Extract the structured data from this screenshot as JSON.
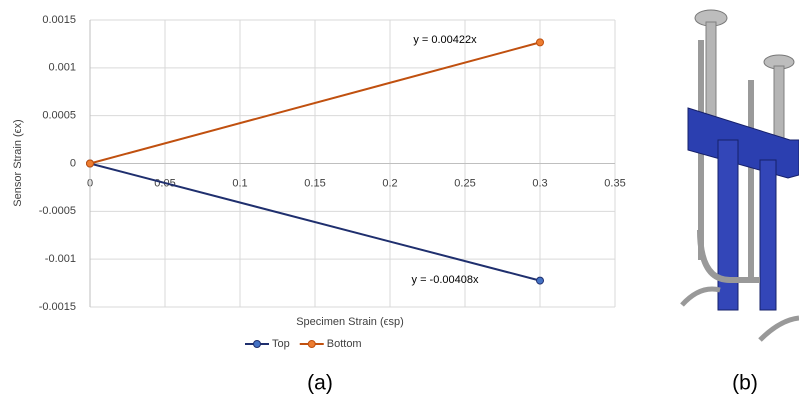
{
  "chart_data": {
    "type": "line",
    "x_label": "Specimen Strain (ϵsp)",
    "y_label": "Sensor Strain (ϵx)",
    "x": [
      0,
      0.3
    ],
    "series": [
      {
        "name": "Top",
        "color": "#1f2f6e",
        "marker_color": "#4472c4",
        "values": [
          0,
          -0.001224
        ]
      },
      {
        "name": "Bottom",
        "color": "#c0500f",
        "marker_color": "#ed7d31",
        "values": [
          0,
          0.001266
        ]
      }
    ],
    "annotations": [
      "y = -0.00408x",
      "y = 0.00422x"
    ],
    "xlim": [
      0,
      0.35
    ],
    "xticks": [
      0,
      0.05,
      0.1,
      0.15,
      0.2,
      0.25,
      0.3,
      0.35
    ],
    "ylim": [
      -0.0015,
      0.0015
    ],
    "yticks": [
      -0.0015,
      -0.001,
      -0.0005,
      0,
      0.0005,
      0.001,
      0.0015
    ],
    "grid": true,
    "legend": "bottom"
  },
  "captions": [
    "(a)",
    "(b)"
  ]
}
